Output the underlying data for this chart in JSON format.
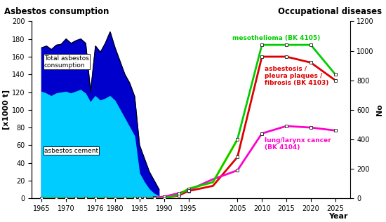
{
  "title_left": "Asbestos consumption",
  "title_right": "Occupational diseases",
  "ylabel_left": "[x1000 t]",
  "ylabel_right": "No",
  "xlabel": "Year",
  "ylim_left": [
    0,
    200
  ],
  "ylim_right": [
    0,
    1200
  ],
  "yticks_left": [
    0,
    20,
    40,
    60,
    80,
    100,
    120,
    140,
    160,
    180,
    200
  ],
  "yticks_right": [
    0,
    200,
    400,
    600,
    800,
    1000,
    1200
  ],
  "xticks": [
    1965,
    1970,
    1976,
    1980,
    1985,
    1990,
    1995,
    2005,
    2010,
    2015,
    2020,
    2025
  ],
  "xmin": 1963,
  "xmax": 2028,
  "total_asbestos_x": [
    1965,
    1966,
    1967,
    1968,
    1969,
    1970,
    1971,
    1972,
    1973,
    1974,
    1975,
    1976,
    1977,
    1978,
    1979,
    1980,
    1981,
    1982,
    1983,
    1984,
    1985,
    1986,
    1987,
    1988,
    1989
  ],
  "total_asbestos_y": [
    170,
    172,
    168,
    173,
    174,
    180,
    175,
    178,
    180,
    175,
    120,
    172,
    165,
    175,
    188,
    170,
    155,
    140,
    130,
    115,
    60,
    45,
    30,
    20,
    10
  ],
  "total_asbestos_color": "#0000cc",
  "cement_x": [
    1965,
    1966,
    1967,
    1968,
    1969,
    1970,
    1971,
    1972,
    1973,
    1974,
    1975,
    1976,
    1977,
    1978,
    1979,
    1980,
    1981,
    1982,
    1983,
    1984,
    1985,
    1986,
    1987,
    1988,
    1989
  ],
  "cement_y": [
    120,
    118,
    115,
    118,
    119,
    120,
    118,
    120,
    122,
    118,
    108,
    115,
    110,
    112,
    115,
    110,
    100,
    90,
    80,
    70,
    28,
    18,
    10,
    5,
    2
  ],
  "cement_color": "#00ccff",
  "meso_x": [
    1965,
    1968,
    1970,
    1972,
    1974,
    1976,
    1978,
    1980,
    1982,
    1984,
    1985,
    1986,
    1988,
    1990,
    1993,
    1995,
    2000,
    2005,
    2010,
    2015,
    2020,
    2025
  ],
  "meso_y": [
    0,
    0,
    0,
    0,
    0,
    0,
    0,
    0,
    0,
    0,
    0,
    0,
    0,
    0,
    25,
    65,
    110,
    400,
    1040,
    1040,
    1040,
    840
  ],
  "meso_color": "#00cc00",
  "asb_x": [
    1965,
    1968,
    1970,
    1972,
    1974,
    1976,
    1978,
    1980,
    1982,
    1984,
    1985,
    1986,
    1988,
    1990,
    1993,
    1995,
    2000,
    2005,
    2010,
    2015,
    2020,
    2025
  ],
  "asb_y": [
    0,
    0,
    0,
    0,
    0,
    0,
    0,
    0,
    0,
    0,
    0,
    0,
    0,
    0,
    20,
    50,
    85,
    280,
    960,
    960,
    920,
    800
  ],
  "asb_color": "#dd0000",
  "lung_x": [
    1965,
    1968,
    1970,
    1972,
    1974,
    1976,
    1978,
    1980,
    1982,
    1984,
    1985,
    1986,
    1988,
    1990,
    1993,
    1995,
    2000,
    2005,
    2010,
    2015,
    2020,
    2025
  ],
  "lung_y": [
    0,
    0,
    0,
    0,
    0,
    0,
    0,
    0,
    0,
    0,
    0,
    0,
    5,
    12,
    35,
    55,
    130,
    190,
    440,
    490,
    480,
    460
  ],
  "lung_color": "#ff00cc",
  "yellow_x": [
    1984,
    1988,
    1990,
    1993,
    1995,
    2000,
    2005
  ],
  "yellow_y": [
    0,
    0,
    0,
    25,
    65,
    110,
    400
  ],
  "meso_marker_x": [
    1990,
    1993,
    1995,
    2005,
    2010,
    2015,
    2020,
    2025
  ],
  "meso_marker_y": [
    0,
    25,
    65,
    400,
    1040,
    1040,
    1040,
    840
  ],
  "asb_marker_x": [
    1990,
    1993,
    1995,
    2005,
    2010,
    2015,
    2020,
    2025
  ],
  "asb_marker_y": [
    0,
    20,
    50,
    280,
    960,
    960,
    920,
    800
  ],
  "lung_marker_x": [
    1984,
    1988,
    1990,
    1993,
    1995,
    2005,
    2010,
    2015,
    2020,
    2025
  ],
  "lung_marker_y": [
    0,
    5,
    12,
    35,
    55,
    190,
    440,
    490,
    480,
    460
  ],
  "old_meso_x": [
    1965,
    1968,
    1970,
    1972,
    1974,
    1976,
    1978,
    1980,
    1982,
    1984,
    1985
  ],
  "old_meso_y": [
    0,
    0,
    0,
    0,
    0,
    0,
    0,
    0,
    0,
    0,
    0
  ],
  "old_asb_x": [
    1965,
    1968,
    1970,
    1972,
    1974,
    1976,
    1978,
    1980,
    1982,
    1984,
    1985
  ],
  "old_asb_y": [
    0,
    0,
    0,
    0,
    0,
    0,
    0,
    0,
    0,
    0,
    0
  ],
  "old_lung_x": [
    1965,
    1968,
    1970,
    1972,
    1974,
    1976,
    1978,
    1980,
    1982,
    1984,
    1985,
    1986,
    1988
  ],
  "old_lung_y": [
    0,
    0,
    0,
    0,
    0,
    0,
    0,
    0,
    0,
    0,
    0,
    0,
    5
  ],
  "scale": 6.0,
  "label_total": "Total asbestos\nconsumption",
  "label_cement": "asbestos cement",
  "label_meso": "mesothelioma (BK 4105)",
  "label_asb": "asbestosis /\npleura plaques /\nfibrosis (BK 4103)",
  "label_lung": "lung/larynx cancer\n(BK 4104)",
  "background_color": "#ffffff"
}
